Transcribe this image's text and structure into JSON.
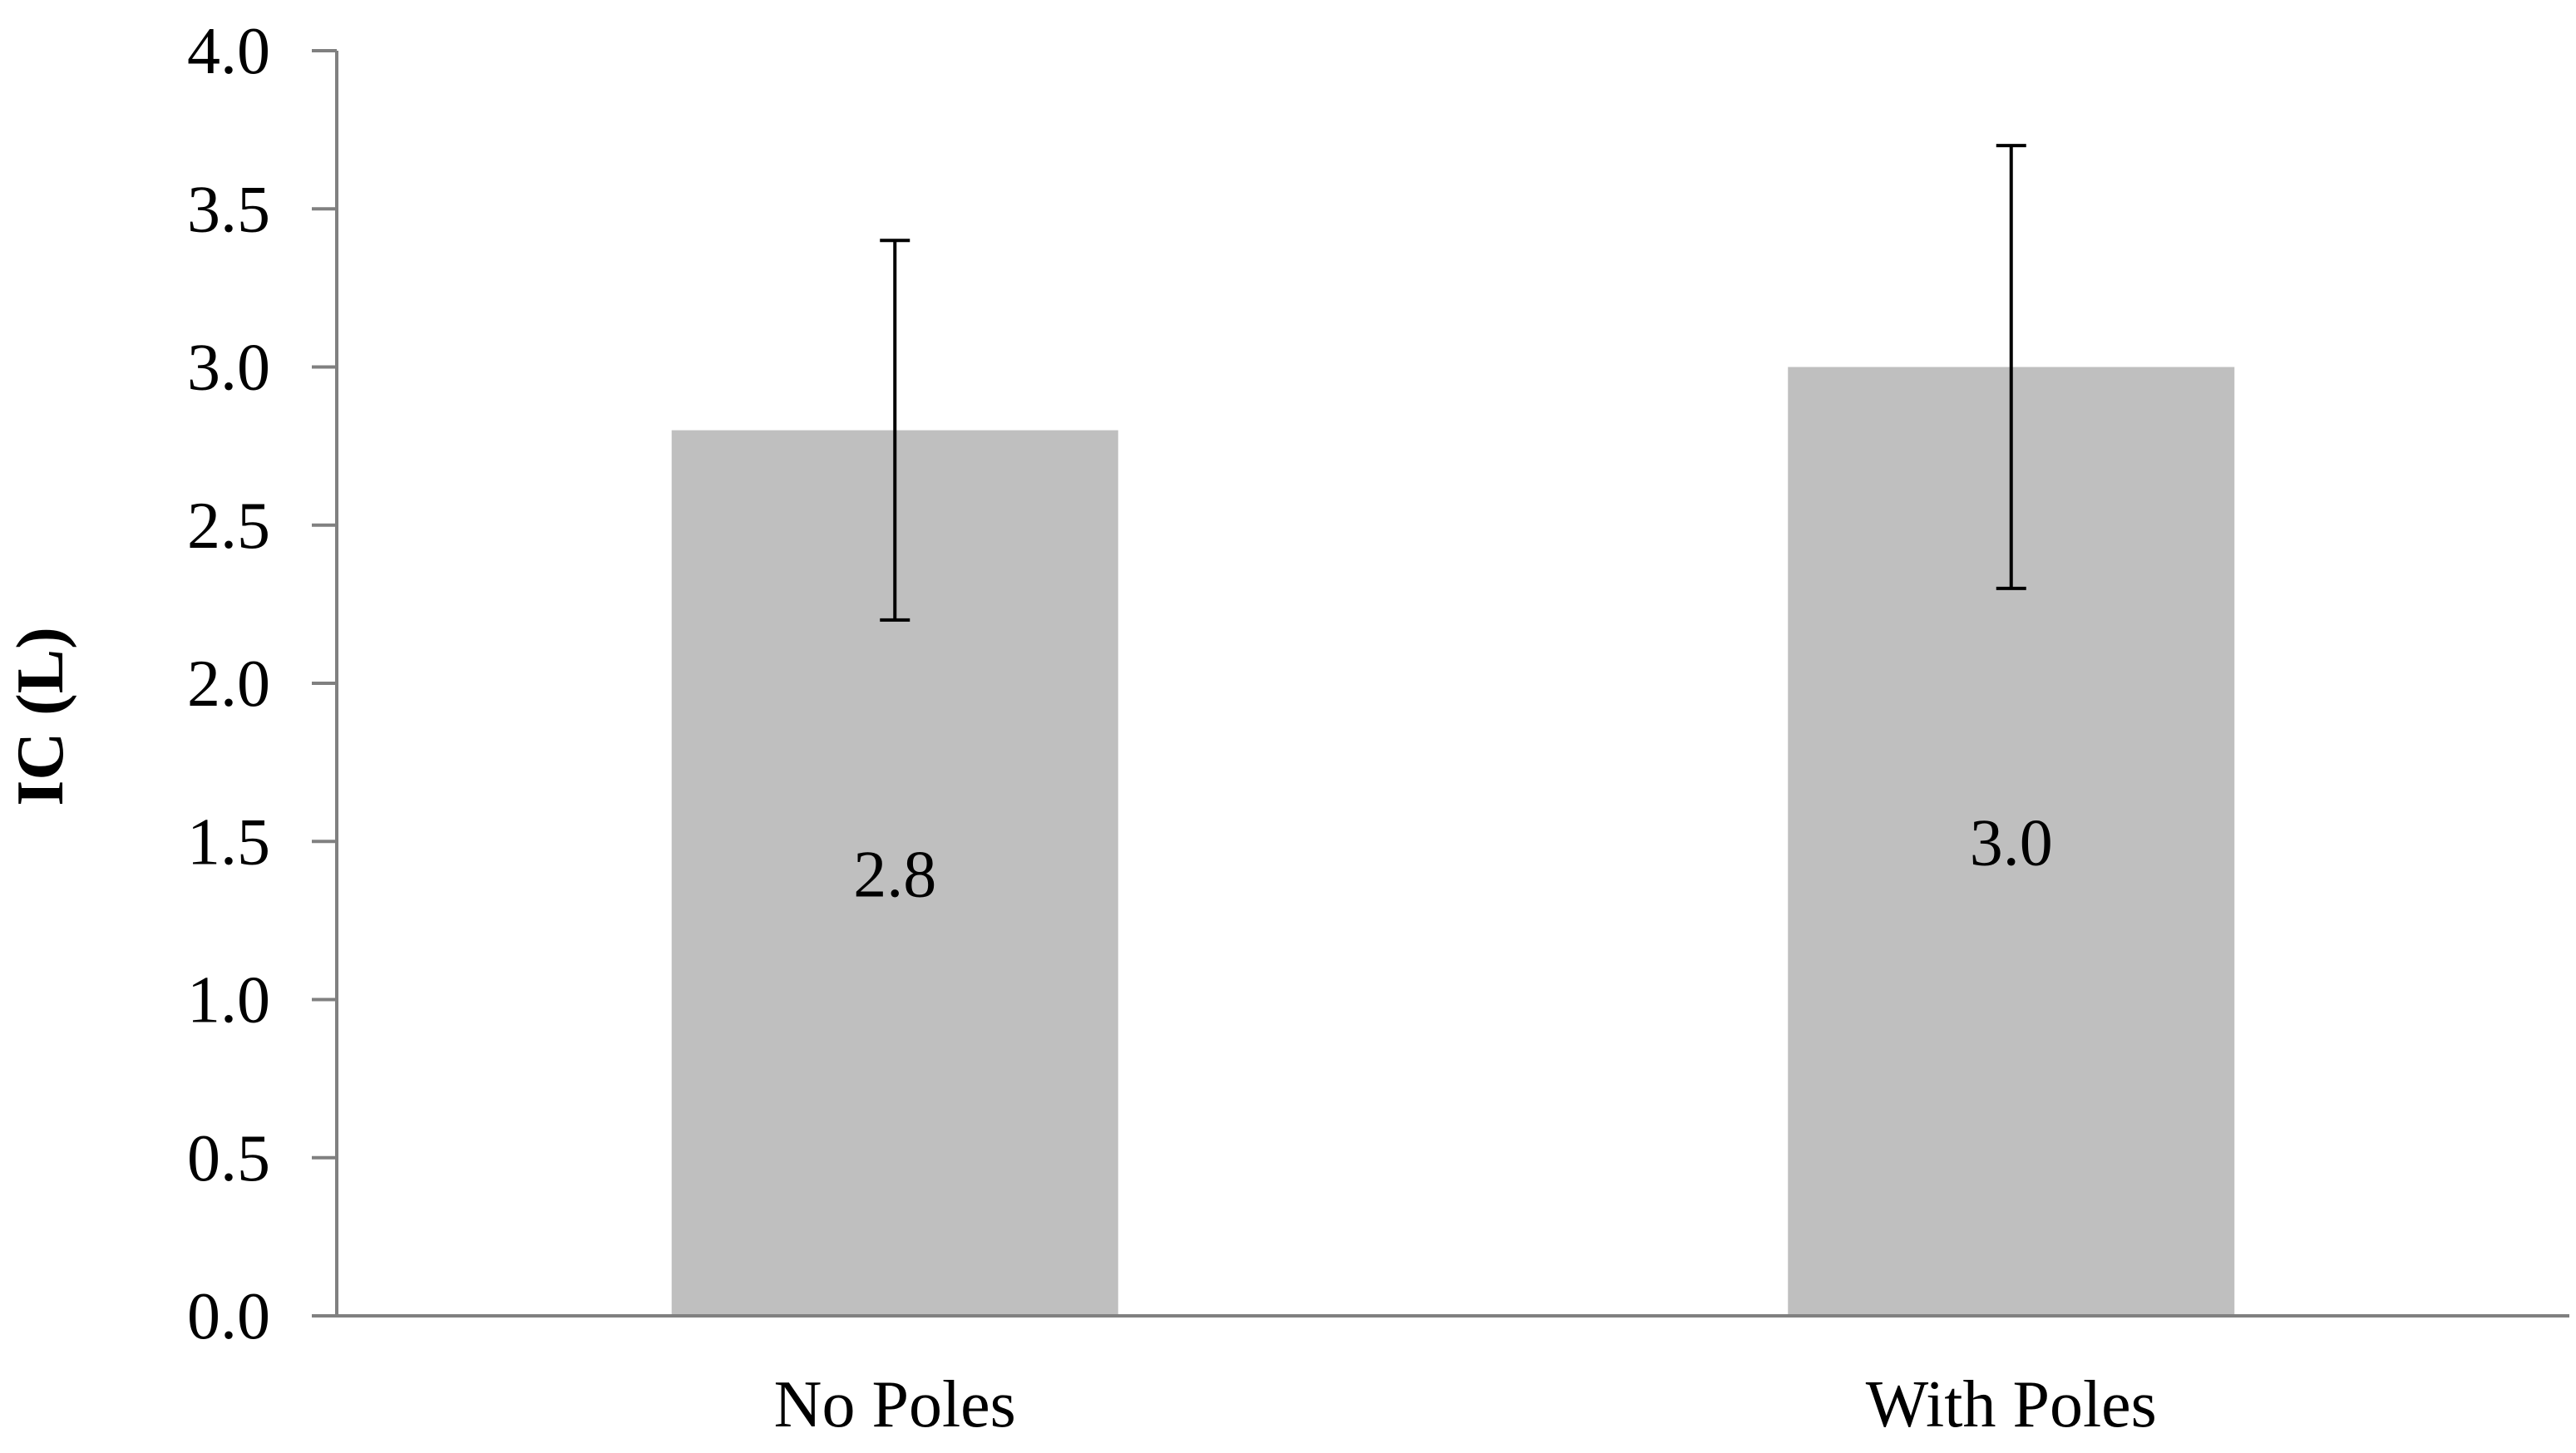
{
  "chart_data": {
    "type": "bar",
    "title": "",
    "xlabel": "",
    "ylabel": "IC (L)",
    "categories": [
      "No Poles",
      "With Poles"
    ],
    "values": [
      2.8,
      3.0
    ],
    "data_labels": [
      "2.8",
      "3.0"
    ],
    "error_bars": [
      {
        "low": 2.2,
        "high": 3.4
      },
      {
        "low": 2.3,
        "high": 3.7
      }
    ],
    "ylim": [
      0,
      4.0
    ],
    "yticks": [
      0.0,
      0.5,
      1.0,
      1.5,
      2.0,
      2.5,
      3.0,
      3.5,
      4.0
    ],
    "ytick_labels": [
      "0.0",
      "0.5",
      "1.0",
      "1.5",
      "2.0",
      "2.5",
      "3.0",
      "3.5",
      "4.0"
    ],
    "grid": false,
    "legend": "none",
    "colors": {
      "bar": "#bfbfbf",
      "axis": "#808080",
      "error_bar": "#000000",
      "text": "#000000"
    }
  }
}
